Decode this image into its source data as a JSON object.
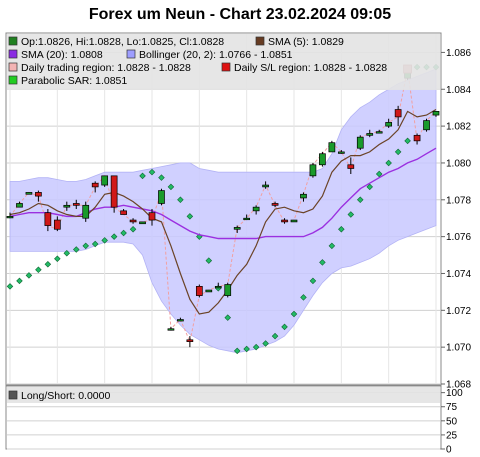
{
  "chart_data": [
    {
      "type": "candlestick",
      "title": "Forex um Neun - Chart 23.02.2024 09:05",
      "ylim": [
        1.068,
        1.087
      ],
      "yticks": [
        "1.068",
        "1.070",
        "1.072",
        "1.074",
        "1.076",
        "1.078",
        "1.080",
        "1.082",
        "1.084",
        "1.086"
      ],
      "grid": true,
      "legend_position": "top",
      "legend": [
        {
          "text": "Op:1.0826, Hi:1.0828, Lo:1.0825, Cl:1.0828",
          "color": "#208020",
          "shape": "box"
        },
        {
          "text": "SMA (5): 1.0829",
          "color": "#663b22",
          "shape": "box"
        },
        {
          "text": "SMA (20): 1.0808",
          "color": "#8a2be2",
          "shape": "box"
        },
        {
          "text": "Bollinger (20, 2): 1.0766 - 1.0851",
          "color": "#9d9dff",
          "shape": "box"
        },
        {
          "text": "Daily trading region: 1.0828 - 1.0828",
          "color": "#f4b4b4",
          "shape": "box"
        },
        {
          "text": "Daily S/L region: 1.0828 - 1.0828",
          "color": "#dd1111",
          "shape": "box"
        },
        {
          "text": "Parabolic SAR: 1.0851",
          "color": "#22cc22",
          "shape": "box"
        }
      ],
      "candles": [
        {
          "o": 1.0771,
          "h": 1.0773,
          "l": 1.077,
          "c": 1.0771
        },
        {
          "o": 1.0776,
          "h": 1.0779,
          "l": 1.0776,
          "c": 1.0778
        },
        {
          "o": 1.0783,
          "h": 1.0784,
          "l": 1.0783,
          "c": 1.0784
        },
        {
          "o": 1.0784,
          "h": 1.0785,
          "l": 1.0779,
          "c": 1.0782
        },
        {
          "o": 1.0773,
          "h": 1.0775,
          "l": 1.0763,
          "c": 1.0766
        },
        {
          "o": 1.0769,
          "h": 1.0771,
          "l": 1.0763,
          "c": 1.0764
        },
        {
          "o": 1.0776,
          "h": 1.0779,
          "l": 1.0774,
          "c": 1.0777
        },
        {
          "o": 1.0778,
          "h": 1.078,
          "l": 1.0775,
          "c": 1.0777
        },
        {
          "o": 1.077,
          "h": 1.0779,
          "l": 1.0768,
          "c": 1.0777
        },
        {
          "o": 1.0789,
          "h": 1.079,
          "l": 1.0784,
          "c": 1.0787
        },
        {
          "o": 1.0788,
          "h": 1.0793,
          "l": 1.0787,
          "c": 1.0793
        },
        {
          "o": 1.0793,
          "h": 1.0793,
          "l": 1.0773,
          "c": 1.0776
        },
        {
          "o": 1.0774,
          "h": 1.0775,
          "l": 1.0772,
          "c": 1.0772
        },
        {
          "o": 1.0769,
          "h": 1.077,
          "l": 1.0767,
          "c": 1.0768
        },
        {
          "o": 1.0767,
          "h": 1.0768,
          "l": 1.0767,
          "c": 1.0768
        },
        {
          "o": 1.0773,
          "h": 1.0775,
          "l": 1.0766,
          "c": 1.0769
        },
        {
          "o": 1.0778,
          "h": 1.0786,
          "l": 1.0777,
          "c": 1.0785
        },
        {
          "o": 1.071,
          "h": 1.0711,
          "l": 1.0709,
          "c": 1.071
        },
        {
          "o": 1.0715,
          "h": 1.0716,
          "l": 1.0714,
          "c": 1.0715
        },
        {
          "o": 1.0704,
          "h": 1.0706,
          "l": 1.07,
          "c": 1.0703
        },
        {
          "o": 1.0733,
          "h": 1.0734,
          "l": 1.0727,
          "c": 1.0728
        },
        {
          "o": 1.073,
          "h": 1.0731,
          "l": 1.073,
          "c": 1.0731
        },
        {
          "o": 1.0733,
          "h": 1.0735,
          "l": 1.0732,
          "c": 1.0733
        },
        {
          "o": 1.0728,
          "h": 1.0735,
          "l": 1.0727,
          "c": 1.0734
        },
        {
          "o": 1.0764,
          "h": 1.0766,
          "l": 1.0762,
          "c": 1.0765
        },
        {
          "o": 1.077,
          "h": 1.0772,
          "l": 1.0769,
          "c": 1.077
        },
        {
          "o": 1.0774,
          "h": 1.0777,
          "l": 1.0772,
          "c": 1.0776
        },
        {
          "o": 1.0787,
          "h": 1.079,
          "l": 1.0786,
          "c": 1.0788
        },
        {
          "o": 1.0778,
          "h": 1.0779,
          "l": 1.0776,
          "c": 1.0777
        },
        {
          "o": 1.0769,
          "h": 1.077,
          "l": 1.0767,
          "c": 1.0768
        },
        {
          "o": 1.0768,
          "h": 1.0769,
          "l": 1.0768,
          "c": 1.0769
        },
        {
          "o": 1.0781,
          "h": 1.0784,
          "l": 1.0779,
          "c": 1.0783
        },
        {
          "o": 1.0793,
          "h": 1.08,
          "l": 1.0792,
          "c": 1.0799
        },
        {
          "o": 1.0799,
          "h": 1.0806,
          "l": 1.0798,
          "c": 1.0805
        },
        {
          "o": 1.0806,
          "h": 1.0812,
          "l": 1.0806,
          "c": 1.0811
        },
        {
          "o": 1.0806,
          "h": 1.0807,
          "l": 1.0805,
          "c": 1.0806
        },
        {
          "o": 1.0799,
          "h": 1.0803,
          "l": 1.0794,
          "c": 1.0797
        },
        {
          "o": 1.0808,
          "h": 1.0815,
          "l": 1.0807,
          "c": 1.0814
        },
        {
          "o": 1.0815,
          "h": 1.0818,
          "l": 1.0814,
          "c": 1.0816
        },
        {
          "o": 1.0817,
          "h": 1.0818,
          "l": 1.0816,
          "c": 1.0817
        },
        {
          "o": 1.082,
          "h": 1.0824,
          "l": 1.0819,
          "c": 1.0822
        },
        {
          "o": 1.0829,
          "h": 1.0831,
          "l": 1.082,
          "c": 1.0825
        },
        {
          "o": 1.0846,
          "h": 1.0851,
          "l": 1.0845,
          "c": 1.0851
        },
        {
          "o": 1.0815,
          "h": 1.0816,
          "l": 1.081,
          "c": 1.0812
        },
        {
          "o": 1.0818,
          "h": 1.0824,
          "l": 1.0817,
          "c": 1.0823
        },
        {
          "o": 1.0826,
          "h": 1.0828,
          "l": 1.0825,
          "c": 1.0828
        }
      ],
      "sma5": [
        1.0772,
        1.0773,
        1.0775,
        1.0778,
        1.0777,
        1.0774,
        1.0772,
        1.0771,
        1.0771,
        1.0776,
        1.0783,
        1.0784,
        1.0782,
        1.0779,
        1.0775,
        1.077,
        1.0768,
        1.0755,
        1.074,
        1.0726,
        1.0718,
        1.0719,
        1.0724,
        1.0731,
        1.0739,
        1.0745,
        1.0755,
        1.0768,
        1.0775,
        1.0776,
        1.0774,
        1.0773,
        1.0775,
        1.0782,
        1.0795,
        1.0801,
        1.0804,
        1.0804,
        1.0806,
        1.081,
        1.0813,
        1.0818,
        1.0828,
        1.0825,
        1.0826,
        1.0829
      ],
      "sma20": [
        1.0771,
        1.0772,
        1.0773,
        1.0773,
        1.0773,
        1.0772,
        1.0771,
        1.0771,
        1.0773,
        1.0775,
        1.0776,
        1.0776,
        1.0777,
        1.0776,
        1.0775,
        1.0774,
        1.0772,
        1.0769,
        1.0766,
        1.0763,
        1.0761,
        1.076,
        1.0759,
        1.0759,
        1.0759,
        1.0759,
        1.0759,
        1.076,
        1.076,
        1.076,
        1.076,
        1.076,
        1.0762,
        1.0765,
        1.077,
        1.0776,
        1.0781,
        1.0786,
        1.0789,
        1.0792,
        1.0795,
        1.0797,
        1.08,
        1.0802,
        1.0805,
        1.0808
      ],
      "bb_upper": [
        1.079,
        1.079,
        1.0791,
        1.0792,
        1.0792,
        1.0791,
        1.079,
        1.079,
        1.0791,
        1.0793,
        1.0795,
        1.0795,
        1.0795,
        1.0795,
        1.0796,
        1.0797,
        1.0798,
        1.0799,
        1.08,
        1.08,
        1.0797,
        1.0796,
        1.0795,
        1.0795,
        1.0795,
        1.0795,
        1.0795,
        1.0795,
        1.0795,
        1.0795,
        1.0795,
        1.0795,
        1.0795,
        1.0797,
        1.0805,
        1.0818,
        1.0825,
        1.083,
        1.0833,
        1.0837,
        1.084,
        1.0843,
        1.0845,
        1.0847,
        1.0849,
        1.0851
      ],
      "bb_lower": [
        1.0752,
        1.0752,
        1.0752,
        1.0752,
        1.0752,
        1.0752,
        1.0752,
        1.0752,
        1.0753,
        1.0755,
        1.0757,
        1.0757,
        1.0757,
        1.0756,
        1.075,
        1.0735,
        1.0725,
        1.0718,
        1.0712,
        1.0707,
        1.0704,
        1.0701,
        1.0699,
        1.0698,
        1.0697,
        1.0698,
        1.0699,
        1.0701,
        1.0703,
        1.0706,
        1.0712,
        1.072,
        1.0728,
        1.0735,
        1.074,
        1.0743,
        1.0744,
        1.0746,
        1.0748,
        1.0751,
        1.0755,
        1.0758,
        1.076,
        1.0762,
        1.0764,
        1.0766
      ],
      "sar": [
        1.0733,
        1.0736,
        1.0739,
        1.0742,
        1.0745,
        1.0748,
        1.0751,
        1.0753,
        1.0755,
        1.0756,
        1.0758,
        1.076,
        1.0762,
        1.0764,
        1.0793,
        1.0795,
        1.0792,
        1.0787,
        1.078,
        1.0771,
        1.076,
        1.0747,
        1.0732,
        1.0716,
        1.0698,
        1.0699,
        1.07,
        1.0702,
        1.0706,
        1.0711,
        1.0718,
        1.0727,
        1.0736,
        1.0746,
        1.0755,
        1.0764,
        1.0772,
        1.078,
        1.0787,
        1.0794,
        1.08,
        1.0806,
        1.0812,
        1.0852,
        1.0852,
        1.0852
      ]
    },
    {
      "type": "line",
      "legend": [
        {
          "text": "Long/Short: 0.0000",
          "color": "#555555",
          "shape": "box"
        }
      ],
      "ylim": [
        0,
        110
      ],
      "yticks": [
        "0",
        "25",
        "50",
        "75",
        "100"
      ],
      "values": []
    }
  ]
}
